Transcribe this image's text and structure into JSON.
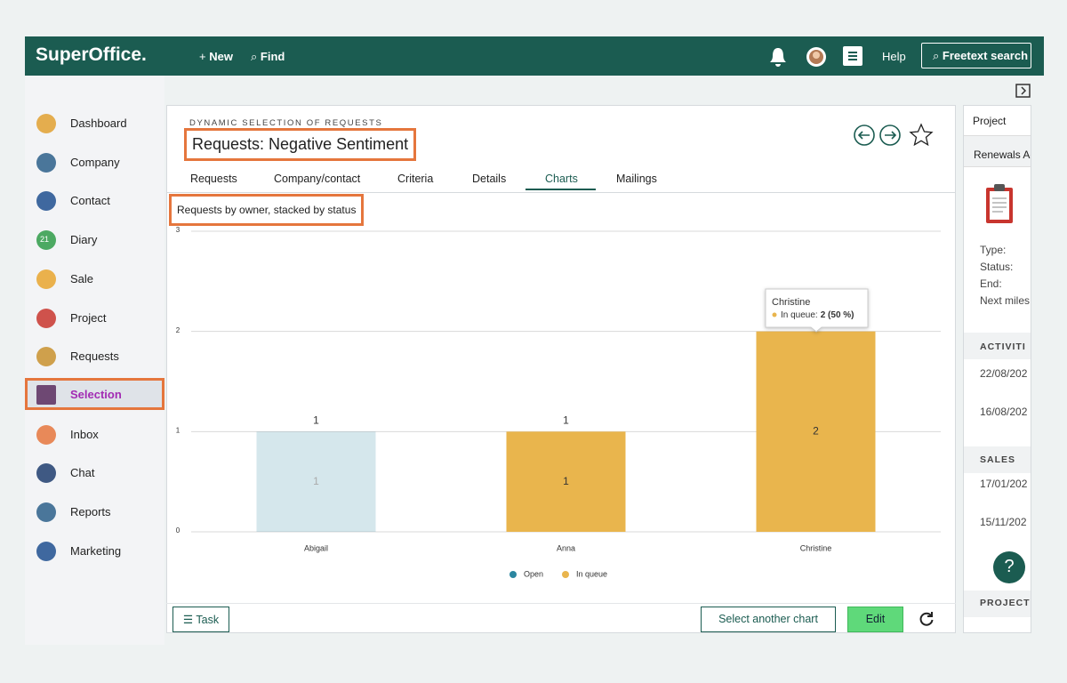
{
  "header": {
    "logo": "SuperOffice.",
    "new": "New",
    "find": "Find",
    "help": "Help",
    "search": "Freetext search"
  },
  "nav": [
    "Dashboard",
    "Company",
    "Contact",
    "Diary",
    "Sale",
    "Project",
    "Requests",
    "Selection",
    "Inbox",
    "Chat",
    "Reports",
    "Marketing"
  ],
  "diary_day": "21",
  "selection": {
    "kicker": "DYNAMIC SELECTION OF REQUESTS",
    "title": "Requests: Negative Sentiment",
    "tabs": [
      "Requests",
      "Company/contact",
      "Criteria",
      "Details",
      "Charts",
      "Mailings"
    ],
    "active_tab": 4
  },
  "chart_data": {
    "type": "bar",
    "stacked": true,
    "title": "Requests by owner, stacked by status",
    "categories": [
      "Abigail",
      "Anna",
      "Christine"
    ],
    "series": [
      {
        "name": "Open",
        "color": "#2b86a0",
        "values": [
          1,
          0,
          0
        ]
      },
      {
        "name": "In queue",
        "color": "#e9b54d",
        "values": [
          0,
          1,
          2
        ]
      }
    ],
    "totals": [
      1,
      1,
      2
    ],
    "ylim": [
      0,
      3
    ],
    "yticks": [
      0,
      1,
      2,
      3
    ],
    "grid": true,
    "legend": "bottom",
    "active_series": 1,
    "tooltip": {
      "title": "Christine",
      "label": "In queue:",
      "value_label": "2 (50 %)"
    }
  },
  "footer": {
    "task": "Task",
    "select_chart": "Select another chart",
    "edit": "Edit"
  },
  "side_panel": {
    "tab": "Project",
    "project": "Renewals A-",
    "fields": [
      "Type:",
      "Status:",
      "End:",
      "Next miles"
    ],
    "activities": {
      "heading": "ACTIVITI",
      "dates": [
        "22/08/202",
        "16/08/202"
      ]
    },
    "sales": {
      "heading": "SALES",
      "dates": [
        "17/01/202",
        "15/11/202"
      ]
    },
    "project_heading": "PROJECT"
  },
  "help_button": "?"
}
